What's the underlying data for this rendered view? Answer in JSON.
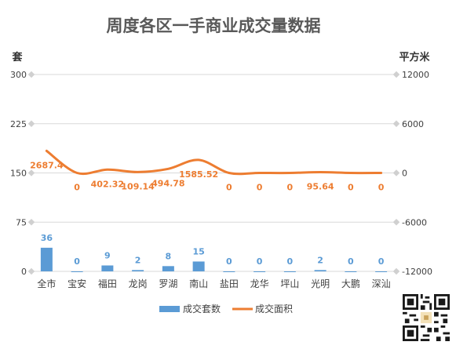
{
  "chart_data": {
    "type": "bar",
    "title": "周度各区一手商业成交量数据",
    "left_axis_unit": "套",
    "right_axis_unit": "平方米",
    "categories": [
      "全市",
      "宝安",
      "福田",
      "龙岗",
      "罗湖",
      "南山",
      "盐田",
      "龙华",
      "坪山",
      "光明",
      "大鹏",
      "深汕"
    ],
    "left_ylim": [
      0,
      300
    ],
    "left_ticks": [
      "0",
      "75",
      "150",
      "225",
      "300"
    ],
    "right_ylim": [
      -12000,
      12000
    ],
    "right_ticks": [
      "-12000",
      "-6000",
      "0",
      "6000",
      "12000"
    ],
    "grid": true,
    "legend_position": "bottom",
    "series": [
      {
        "name": "成交套数",
        "type": "bar",
        "axis": "left",
        "color": "#5b9bd5",
        "values": [
          36,
          0,
          9,
          2,
          8,
          15,
          0,
          0,
          0,
          2,
          0,
          0
        ],
        "labels": [
          "36",
          "0",
          "9",
          "2",
          "8",
          "15",
          "0",
          "0",
          "0",
          "2",
          "0",
          "0"
        ]
      },
      {
        "name": "成交面积",
        "type": "line",
        "axis": "right",
        "color": "#ed7d31",
        "values": [
          2687.4,
          0,
          402.32,
          109.14,
          494.78,
          1585.52,
          0,
          0,
          0,
          95.64,
          0,
          0
        ],
        "labels": [
          "2687.4",
          "0",
          "402.32",
          "109.14",
          "494.78",
          "1585.52",
          "0",
          "0",
          "0",
          "95.64",
          "0",
          "0"
        ]
      }
    ]
  }
}
